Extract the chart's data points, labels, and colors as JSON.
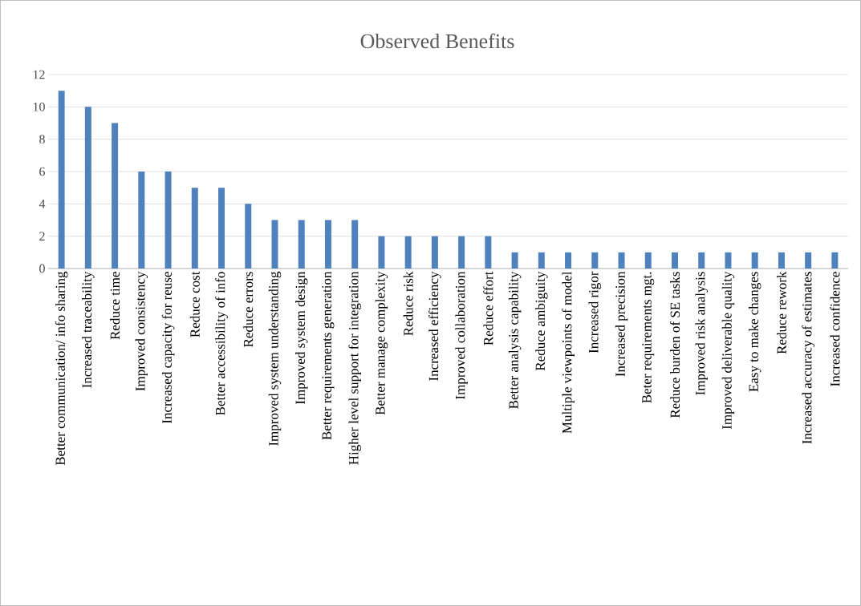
{
  "chart_data": {
    "type": "bar",
    "title": "Observed Benefits",
    "categories": [
      "Better communication/ info sharing",
      "Increased traceability",
      "Reduce time",
      "Improved consistency",
      "Increased capacity for reuse",
      "Reduce cost",
      "Better accessibility of info",
      "Reduce errors",
      "Improved system understanding",
      "Improved system design",
      "Better requirements generation",
      "Higher level support for integration",
      "Better manage complexity",
      "Reduce risk",
      "Increased efficiency",
      "Improved collaboration",
      "Reduce effort",
      "Better analysis capability",
      "Reduce ambiguity",
      "Multiple viewpoints of model",
      "Increased rigor",
      "Increased precision",
      "Beter requirements mgt.",
      "Reduce burden of SE tasks",
      "Improved risk analysis",
      "Improved deliverable quality",
      "Easy to make changes",
      "Reduce rework",
      "Increased accuracy of estimates",
      "Increased confidence"
    ],
    "values": [
      11,
      10,
      9,
      6,
      6,
      5,
      5,
      4,
      3,
      3,
      3,
      3,
      2,
      2,
      2,
      2,
      2,
      1,
      1,
      1,
      1,
      1,
      1,
      1,
      1,
      1,
      1,
      1,
      1,
      1
    ],
    "color": "#4f81bd",
    "ylim": [
      0,
      12
    ],
    "yticks": [
      0,
      2,
      4,
      6,
      8,
      10,
      12
    ],
    "grid": "y"
  }
}
